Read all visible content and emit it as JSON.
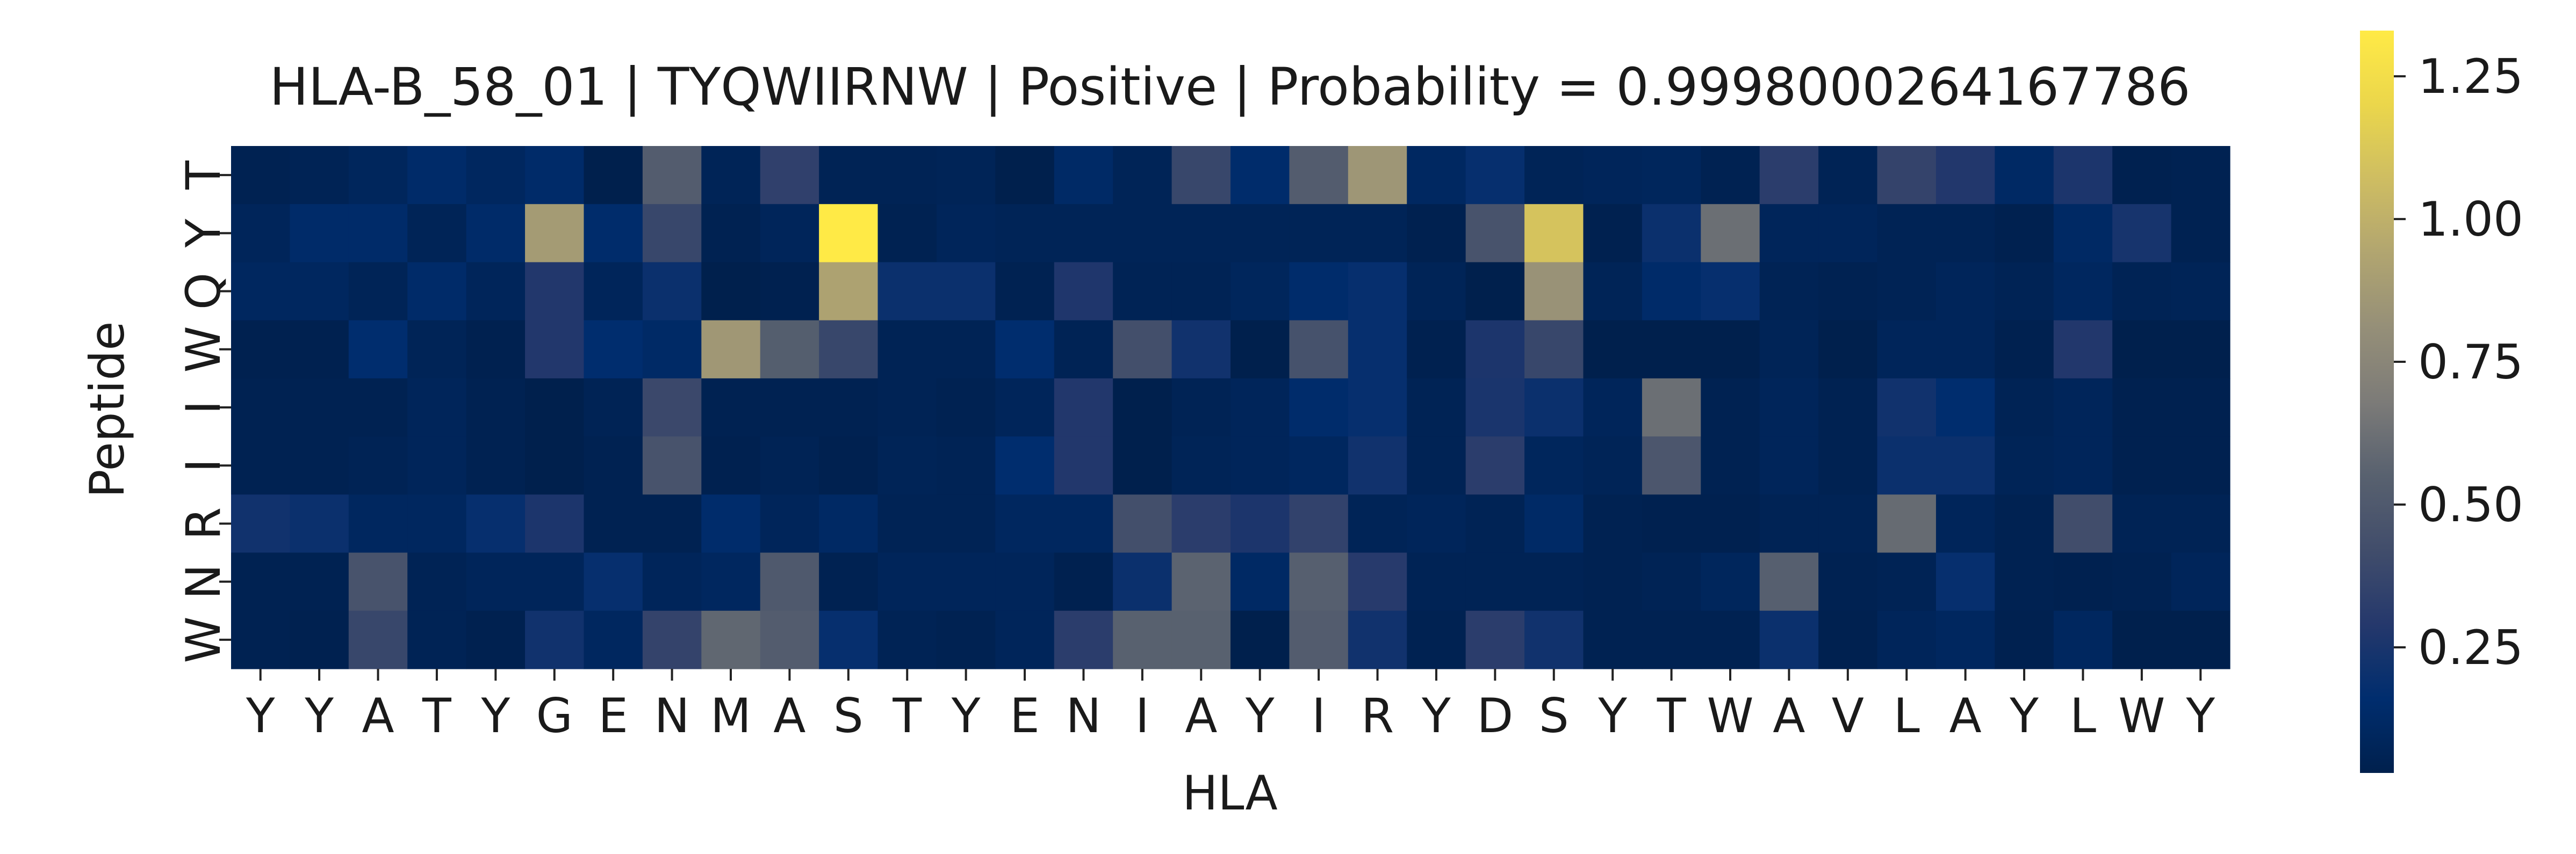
{
  "chart_data": {
    "type": "heatmap",
    "title": "HLA-B_58_01 | TYQWIIRNW | Positive | Probability = 0.9998000264167786",
    "xlabel": "HLA",
    "ylabel": "Peptide",
    "x_tick_labels": [
      "Y",
      "Y",
      "A",
      "T",
      "Y",
      "G",
      "E",
      "N",
      "M",
      "A",
      "S",
      "T",
      "Y",
      "E",
      "N",
      "I",
      "A",
      "Y",
      "I",
      "R",
      "Y",
      "D",
      "S",
      "Y",
      "T",
      "W",
      "A",
      "V",
      "L",
      "A",
      "Y",
      "L",
      "W",
      "Y"
    ],
    "y_tick_labels": [
      "T",
      "Y",
      "Q",
      "W",
      "I",
      "I",
      "R",
      "N",
      "W"
    ],
    "colormap": "cividis",
    "colorbar": {
      "range": [
        0.03,
        1.33
      ],
      "ticks": [
        0.25,
        0.5,
        0.75,
        1.0,
        1.25
      ],
      "tick_labels": [
        "0.25",
        "0.50",
        "0.75",
        "1.00",
        "1.25"
      ]
    },
    "values": [
      [
        0.05,
        0.06,
        0.09,
        0.14,
        0.1,
        0.14,
        0.03,
        0.52,
        0.07,
        0.34,
        0.06,
        0.06,
        0.07,
        0.02,
        0.13,
        0.07,
        0.38,
        0.15,
        0.52,
        0.85,
        0.11,
        0.18,
        0.07,
        0.08,
        0.09,
        0.05,
        0.32,
        0.06,
        0.36,
        0.28,
        0.12,
        0.26,
        0.04,
        0.05
      ],
      [
        0.08,
        0.14,
        0.14,
        0.07,
        0.14,
        0.88,
        0.15,
        0.38,
        0.05,
        0.08,
        1.33,
        0.05,
        0.08,
        0.07,
        0.07,
        0.07,
        0.07,
        0.07,
        0.07,
        0.07,
        0.04,
        0.46,
        1.1,
        0.04,
        0.2,
        0.62,
        0.08,
        0.08,
        0.06,
        0.06,
        0.04,
        0.12,
        0.24,
        0.05
      ],
      [
        0.1,
        0.1,
        0.07,
        0.14,
        0.08,
        0.28,
        0.08,
        0.2,
        0.02,
        0.04,
        0.92,
        0.2,
        0.2,
        0.05,
        0.27,
        0.06,
        0.06,
        0.09,
        0.15,
        0.18,
        0.07,
        0.02,
        0.83,
        0.07,
        0.14,
        0.18,
        0.06,
        0.05,
        0.06,
        0.08,
        0.06,
        0.1,
        0.06,
        0.07
      ],
      [
        0.04,
        0.04,
        0.16,
        0.07,
        0.04,
        0.28,
        0.16,
        0.13,
        0.86,
        0.53,
        0.38,
        0.06,
        0.06,
        0.16,
        0.06,
        0.43,
        0.22,
        0.02,
        0.45,
        0.18,
        0.04,
        0.26,
        0.38,
        0.02,
        0.02,
        0.02,
        0.07,
        0.03,
        0.08,
        0.08,
        0.04,
        0.28,
        0.02,
        0.02
      ],
      [
        0.05,
        0.05,
        0.05,
        0.08,
        0.05,
        0.02,
        0.06,
        0.39,
        0.05,
        0.05,
        0.05,
        0.06,
        0.05,
        0.08,
        0.28,
        0.02,
        0.06,
        0.08,
        0.15,
        0.18,
        0.06,
        0.25,
        0.2,
        0.08,
        0.62,
        0.05,
        0.08,
        0.05,
        0.22,
        0.16,
        0.06,
        0.08,
        0.04,
        0.04
      ],
      [
        0.05,
        0.05,
        0.06,
        0.08,
        0.05,
        0.02,
        0.05,
        0.46,
        0.04,
        0.06,
        0.04,
        0.07,
        0.06,
        0.16,
        0.28,
        0.02,
        0.07,
        0.08,
        0.1,
        0.22,
        0.06,
        0.32,
        0.09,
        0.07,
        0.48,
        0.05,
        0.08,
        0.05,
        0.2,
        0.2,
        0.07,
        0.08,
        0.04,
        0.04
      ],
      [
        0.22,
        0.2,
        0.1,
        0.1,
        0.18,
        0.26,
        0.05,
        0.05,
        0.15,
        0.08,
        0.12,
        0.06,
        0.06,
        0.1,
        0.1,
        0.43,
        0.32,
        0.26,
        0.35,
        0.07,
        0.08,
        0.06,
        0.13,
        0.05,
        0.04,
        0.04,
        0.06,
        0.06,
        0.6,
        0.08,
        0.05,
        0.42,
        0.06,
        0.06
      ],
      [
        0.05,
        0.05,
        0.46,
        0.06,
        0.08,
        0.08,
        0.18,
        0.08,
        0.1,
        0.5,
        0.05,
        0.08,
        0.08,
        0.08,
        0.04,
        0.2,
        0.56,
        0.12,
        0.54,
        0.3,
        0.06,
        0.06,
        0.06,
        0.05,
        0.06,
        0.09,
        0.54,
        0.05,
        0.06,
        0.18,
        0.05,
        0.04,
        0.05,
        0.08
      ],
      [
        0.05,
        0.04,
        0.38,
        0.06,
        0.04,
        0.22,
        0.1,
        0.36,
        0.58,
        0.52,
        0.18,
        0.06,
        0.05,
        0.08,
        0.32,
        0.55,
        0.55,
        0.02,
        0.52,
        0.22,
        0.05,
        0.32,
        0.22,
        0.05,
        0.05,
        0.05,
        0.2,
        0.04,
        0.08,
        0.1,
        0.04,
        0.1,
        0.03,
        0.03
      ]
    ]
  }
}
